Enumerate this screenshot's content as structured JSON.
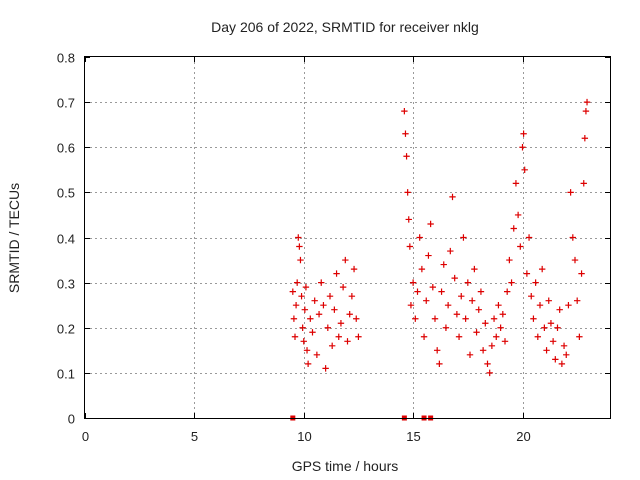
{
  "chart_data": {
    "type": "scatter",
    "title": "Day 206 of 2022, SRMTID for receiver nklg",
    "xlabel": "GPS time / hours",
    "ylabel": "SRMTID / TECUs",
    "xlim": [
      0,
      24
    ],
    "ylim": [
      0,
      0.8
    ],
    "xticks": [
      0,
      5,
      10,
      15,
      20
    ],
    "yticks": [
      0,
      0.1,
      0.2,
      0.3,
      0.4,
      0.5,
      0.6,
      0.7,
      0.8
    ],
    "xtick_labels": [
      "0",
      "5",
      "10",
      "15",
      "20"
    ],
    "ytick_labels": [
      "0",
      "0.1",
      "0.2",
      "0.3",
      "0.4",
      "0.5",
      "0.6",
      "0.7",
      "0.8"
    ],
    "grid": true,
    "marker": "+",
    "color": "#dd0000",
    "zero_markers": [
      9.5,
      14.6,
      15.5,
      15.8
    ],
    "series": [
      {
        "name": "SRMTID",
        "points": [
          [
            9.5,
            0.28
          ],
          [
            9.55,
            0.22
          ],
          [
            9.6,
            0.18
          ],
          [
            9.65,
            0.25
          ],
          [
            9.7,
            0.3
          ],
          [
            9.75,
            0.4
          ],
          [
            9.8,
            0.38
          ],
          [
            9.85,
            0.35
          ],
          [
            9.9,
            0.27
          ],
          [
            9.95,
            0.2
          ],
          [
            10.0,
            0.17
          ],
          [
            10.05,
            0.24
          ],
          [
            10.1,
            0.29
          ],
          [
            10.15,
            0.15
          ],
          [
            10.2,
            0.12
          ],
          [
            10.3,
            0.22
          ],
          [
            10.4,
            0.19
          ],
          [
            10.5,
            0.26
          ],
          [
            10.6,
            0.14
          ],
          [
            10.7,
            0.23
          ],
          [
            10.8,
            0.3
          ],
          [
            10.9,
            0.25
          ],
          [
            11.0,
            0.11
          ],
          [
            11.1,
            0.2
          ],
          [
            11.2,
            0.27
          ],
          [
            11.3,
            0.16
          ],
          [
            11.4,
            0.24
          ],
          [
            11.5,
            0.32
          ],
          [
            11.6,
            0.18
          ],
          [
            11.7,
            0.21
          ],
          [
            11.8,
            0.29
          ],
          [
            11.9,
            0.35
          ],
          [
            12.0,
            0.17
          ],
          [
            12.1,
            0.23
          ],
          [
            12.2,
            0.27
          ],
          [
            12.3,
            0.33
          ],
          [
            12.4,
            0.22
          ],
          [
            12.5,
            0.18
          ],
          [
            14.6,
            0.68
          ],
          [
            14.65,
            0.63
          ],
          [
            14.7,
            0.58
          ],
          [
            14.75,
            0.5
          ],
          [
            14.8,
            0.44
          ],
          [
            14.85,
            0.38
          ],
          [
            14.9,
            0.25
          ],
          [
            15.0,
            0.3
          ],
          [
            15.1,
            0.22
          ],
          [
            15.2,
            0.28
          ],
          [
            15.3,
            0.4
          ],
          [
            15.4,
            0.33
          ],
          [
            15.5,
            0.18
          ],
          [
            15.6,
            0.26
          ],
          [
            15.7,
            0.36
          ],
          [
            15.8,
            0.43
          ],
          [
            15.9,
            0.29
          ],
          [
            16.0,
            0.22
          ],
          [
            16.1,
            0.15
          ],
          [
            16.2,
            0.12
          ],
          [
            16.3,
            0.28
          ],
          [
            16.4,
            0.34
          ],
          [
            16.5,
            0.2
          ],
          [
            16.6,
            0.25
          ],
          [
            16.7,
            0.37
          ],
          [
            16.8,
            0.49
          ],
          [
            16.9,
            0.31
          ],
          [
            17.0,
            0.23
          ],
          [
            17.1,
            0.18
          ],
          [
            17.2,
            0.27
          ],
          [
            17.3,
            0.4
          ],
          [
            17.4,
            0.22
          ],
          [
            17.5,
            0.3
          ],
          [
            17.6,
            0.14
          ],
          [
            17.7,
            0.26
          ],
          [
            17.8,
            0.33
          ],
          [
            17.9,
            0.19
          ],
          [
            18.0,
            0.24
          ],
          [
            18.1,
            0.28
          ],
          [
            18.2,
            0.15
          ],
          [
            18.3,
            0.21
          ],
          [
            18.4,
            0.12
          ],
          [
            18.5,
            0.1
          ],
          [
            18.6,
            0.16
          ],
          [
            18.7,
            0.22
          ],
          [
            18.8,
            0.18
          ],
          [
            18.9,
            0.25
          ],
          [
            19.0,
            0.2
          ],
          [
            19.1,
            0.23
          ],
          [
            19.2,
            0.17
          ],
          [
            19.3,
            0.28
          ],
          [
            19.4,
            0.35
          ],
          [
            19.5,
            0.3
          ],
          [
            19.6,
            0.42
          ],
          [
            19.7,
            0.52
          ],
          [
            19.8,
            0.45
          ],
          [
            19.9,
            0.38
          ],
          [
            20.0,
            0.6
          ],
          [
            20.05,
            0.63
          ],
          [
            20.1,
            0.55
          ],
          [
            20.2,
            0.32
          ],
          [
            20.3,
            0.4
          ],
          [
            20.4,
            0.27
          ],
          [
            20.5,
            0.22
          ],
          [
            20.6,
            0.3
          ],
          [
            20.7,
            0.18
          ],
          [
            20.8,
            0.25
          ],
          [
            20.9,
            0.33
          ],
          [
            21.0,
            0.2
          ],
          [
            21.1,
            0.15
          ],
          [
            21.2,
            0.26
          ],
          [
            21.3,
            0.21
          ],
          [
            21.4,
            0.17
          ],
          [
            21.5,
            0.13
          ],
          [
            21.6,
            0.2
          ],
          [
            21.7,
            0.24
          ],
          [
            21.8,
            0.12
          ],
          [
            21.9,
            0.16
          ],
          [
            22.0,
            0.14
          ],
          [
            22.1,
            0.25
          ],
          [
            22.2,
            0.5
          ],
          [
            22.3,
            0.4
          ],
          [
            22.4,
            0.35
          ],
          [
            22.5,
            0.26
          ],
          [
            22.6,
            0.18
          ],
          [
            22.7,
            0.32
          ],
          [
            22.8,
            0.52
          ],
          [
            22.85,
            0.62
          ],
          [
            22.9,
            0.68
          ],
          [
            22.95,
            0.7
          ]
        ]
      }
    ]
  }
}
